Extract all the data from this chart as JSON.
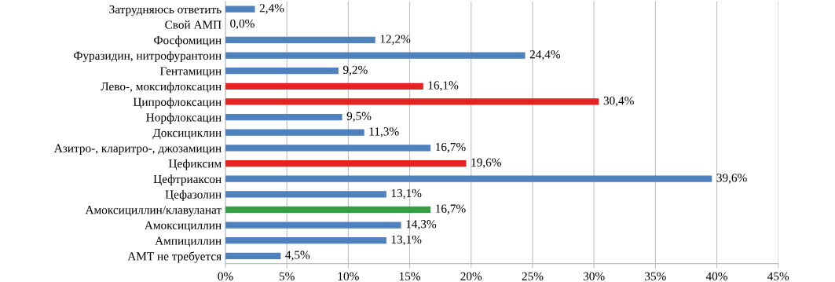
{
  "chart_data": {
    "type": "bar",
    "orientation": "horizontal",
    "categories": [
      "Затрудняюсь ответить",
      "Свой АМП",
      "Фосфомицин",
      "Фуразидин, нитрофурантоин",
      "Гентамицин",
      "Лево-, моксифлоксацин",
      "Ципрофлоксацин",
      "Норфлоксацин",
      "Доксициклин",
      "Азитро-, кларитро-, джозамицин",
      "Цефиксим",
      "Цефтриаксон",
      "Цефазолин",
      "Амоксициллин/клавуланат",
      "Амоксициллин",
      "Ампициллин",
      "АМТ не требуется"
    ],
    "values": [
      2.4,
      0.0,
      12.2,
      24.4,
      9.2,
      16.1,
      30.4,
      9.5,
      11.3,
      16.7,
      19.6,
      39.6,
      13.1,
      16.7,
      14.3,
      13.1,
      4.5
    ],
    "colors": [
      "#4f81bd",
      "#4f81bd",
      "#4f81bd",
      "#4f81bd",
      "#4f81bd",
      "#e52222",
      "#e52222",
      "#4f81bd",
      "#4f81bd",
      "#4f81bd",
      "#e52222",
      "#4f81bd",
      "#4f81bd",
      "#34a046",
      "#4f81bd",
      "#4f81bd",
      "#4f81bd"
    ],
    "value_labels": [
      "2,4%",
      "0,0%",
      "12,2%",
      "24,4%",
      "9,2%",
      "16,1%",
      "30,4%",
      "9,5%",
      "11,3%",
      "16,7%",
      "19,6%",
      "39,6%",
      "13,1%",
      "16,7%",
      "14,3%",
      "13,1%",
      "4,5%"
    ],
    "xlim": [
      0,
      45
    ],
    "xticks": [
      {
        "value": 0,
        "label": "0%"
      },
      {
        "value": 5,
        "label": "5%"
      },
      {
        "value": 10,
        "label": "10%"
      },
      {
        "value": 15,
        "label": "15%"
      },
      {
        "value": 20,
        "label": "20%"
      },
      {
        "value": 25,
        "label": "25%"
      },
      {
        "value": 30,
        "label": "30%"
      },
      {
        "value": 35,
        "label": "35%"
      },
      {
        "value": 40,
        "label": "40%"
      },
      {
        "value": 45,
        "label": "45%"
      }
    ],
    "grid": "x"
  }
}
